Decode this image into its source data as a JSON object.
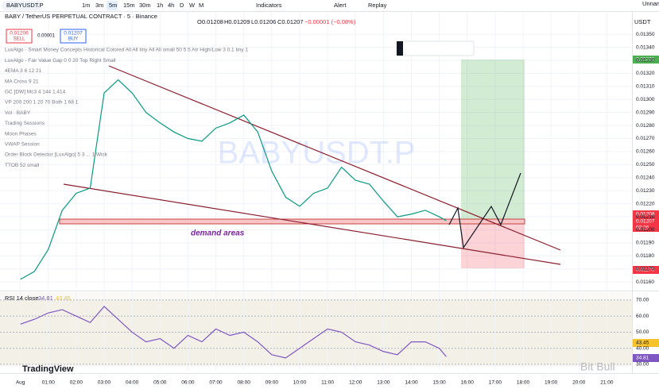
{
  "toolbar": {
    "symbol": "BABYUSDT.P",
    "intervals": [
      "1m",
      "3m",
      "5m",
      "15m",
      "30m",
      "1h",
      "4h",
      "D",
      "W",
      "M"
    ],
    "indicators": "Indicators",
    "alert": "Alert",
    "replay": "Replay",
    "layout": "Unnam"
  },
  "header": {
    "title": "BABY / TetherUS PERPETUAL CONTRACT · 5 · Binance",
    "open": "O0.01208",
    "high": "H0.01209",
    "low": "L0.01206",
    "close": "C0.01207",
    "change": "−0.00001 (−0.08%)",
    "sell_price": "0.01206",
    "sell": "SELL",
    "spread": "0.00001",
    "buy_price": "0.01207",
    "buy": "BUY"
  },
  "indicators": [
    "LuxAlgo - Smart Money Concepts Historical Colored All All tiny All All small 50 5 5 Atr High/Low 3 0.1 tiny 1",
    "LuxAlgo - Fair Value Gap 0 0 20 Top Right Small",
    "4EMA 3 6 12 21",
    "MA Cross 9 21",
    "GC [DW] Mc3 4 144 1.414",
    "VP 200 200 1 20 70 Both 1 68 1",
    "Vol · BABY",
    "Trading Sessions",
    "Moon Phases",
    "VWAP Session",
    "Order Block Detector [LuxAlgo] 5 3 ... 1 Wick",
    "TTOB 52 small"
  ],
  "currency": "USDT",
  "price_labels": [
    "0.01331",
    "0.01208",
    "0.01207",
    "02:26",
    "0.01170"
  ],
  "watermark": "BABYUSDT.P",
  "annotation": "demand areas",
  "rsi_title": "RSI 14 close",
  "rsi_labels": [
    "34.81",
    "43.45"
  ],
  "brand": "TradingView",
  "credit": "Bit Bull",
  "chart_data": [
    {
      "type": "line",
      "color": "#089981",
      "grid": true,
      "x": [
        0,
        0.5,
        1,
        1.5,
        2,
        2.5,
        3,
        3.5,
        4,
        4.5,
        5,
        5.5,
        6,
        6.5,
        7,
        7.5,
        8,
        8.5,
        9,
        9.5,
        10,
        10.5,
        11,
        11.5,
        12,
        12.5,
        13,
        13.5,
        14,
        14.5,
        15,
        15.25
      ],
      "values": [
        0.01162,
        0.01168,
        0.01185,
        0.01215,
        0.01228,
        0.01232,
        0.01305,
        0.01315,
        0.01305,
        0.0129,
        0.01282,
        0.01275,
        0.0127,
        0.01268,
        0.01278,
        0.01282,
        0.01288,
        0.01275,
        0.01245,
        0.01225,
        0.01218,
        0.01228,
        0.01232,
        0.01248,
        0.01238,
        0.01235,
        0.01222,
        0.0121,
        0.01212,
        0.01215,
        0.0121,
        0.01207
      ],
      "xlim": [
        -0.73,
        21.9
      ],
      "xticks": [
        {
          "value": 0,
          "label": "Aug"
        },
        {
          "value": 1,
          "label": "01:00"
        },
        {
          "value": 2,
          "label": "02:00"
        },
        {
          "value": 3,
          "label": "03:00"
        },
        {
          "value": 4,
          "label": "04:00"
        },
        {
          "value": 5,
          "label": "05:00"
        },
        {
          "value": 6,
          "label": "06:00"
        },
        {
          "value": 7,
          "label": "07:00"
        },
        {
          "value": 8,
          "label": "08:00"
        },
        {
          "value": 9,
          "label": "09:00"
        },
        {
          "value": 10,
          "label": "10:00"
        },
        {
          "value": 11,
          "label": "11:00"
        },
        {
          "value": 12,
          "label": "12:00"
        },
        {
          "value": 13,
          "label": "13:00"
        },
        {
          "value": 14,
          "label": "14:00"
        },
        {
          "value": 15,
          "label": "15:00"
        },
        {
          "value": 16,
          "label": "16:00"
        },
        {
          "value": 17,
          "label": "17:00"
        },
        {
          "value": 18,
          "label": "18:00"
        },
        {
          "value": 19,
          "label": "19:00"
        },
        {
          "value": 20,
          "label": "20:00"
        },
        {
          "value": 21,
          "label": "21:00"
        }
      ],
      "ylim": [
        0.01154,
        0.01358
      ],
      "yticks": [
        {
          "value": 0.0116,
          "label": "0.01160"
        },
        {
          "value": 0.0117,
          "label": "0.01170"
        },
        {
          "value": 0.0118,
          "label": "0.01180"
        },
        {
          "value": 0.0119,
          "label": "0.01190"
        },
        {
          "value": 0.012,
          "label": "0.01200"
        },
        {
          "value": 0.0121,
          "label": "0.01210"
        },
        {
          "value": 0.0122,
          "label": "0.01220"
        },
        {
          "value": 0.0123,
          "label": "0.01230"
        },
        {
          "value": 0.0124,
          "label": "0.01240"
        },
        {
          "value": 0.0125,
          "label": "0.01250"
        },
        {
          "value": 0.0126,
          "label": "0.01260"
        },
        {
          "value": 0.0127,
          "label": "0.01270"
        },
        {
          "value": 0.0128,
          "label": "0.01280"
        },
        {
          "value": 0.0129,
          "label": "0.01290"
        },
        {
          "value": 0.013,
          "label": "0.01300"
        },
        {
          "value": 0.0131,
          "label": "0.01310"
        },
        {
          "value": 0.0132,
          "label": "0.01320"
        },
        {
          "value": 0.0133,
          "label": "0.01330"
        },
        {
          "value": 0.0134,
          "label": "0.01340"
        },
        {
          "value": 0.0135,
          "label": "0.01350"
        }
      ]
    },
    {
      "type": "line",
      "color": "#7e57c2",
      "grid": true,
      "x": [
        0,
        0.5,
        1,
        1.5,
        2,
        2.5,
        3,
        3.5,
        4,
        4.5,
        5,
        5.5,
        6,
        6.5,
        7,
        7.5,
        8,
        8.5,
        9,
        9.5,
        10,
        10.5,
        11,
        11.5,
        12,
        12.5,
        13,
        13.5,
        14,
        14.5,
        15,
        15.25
      ],
      "values": [
        55,
        58,
        62,
        64,
        60,
        56,
        66,
        58,
        50,
        44,
        46,
        40,
        48,
        44,
        52,
        48,
        50,
        44,
        36,
        34,
        40,
        46,
        52,
        50,
        44,
        42,
        38,
        36,
        44,
        44,
        40,
        34.81
      ],
      "xlim": [
        -0.73,
        21.9
      ],
      "ylim": [
        28.5,
        74.9
      ],
      "yticks": [
        {
          "value": 70,
          "label": "70.00"
        },
        {
          "value": 60,
          "label": "60.00"
        },
        {
          "value": 50,
          "label": "50.00"
        },
        {
          "value": 40,
          "label": "40.00"
        },
        {
          "value": 30,
          "label": "30.00"
        }
      ]
    }
  ]
}
